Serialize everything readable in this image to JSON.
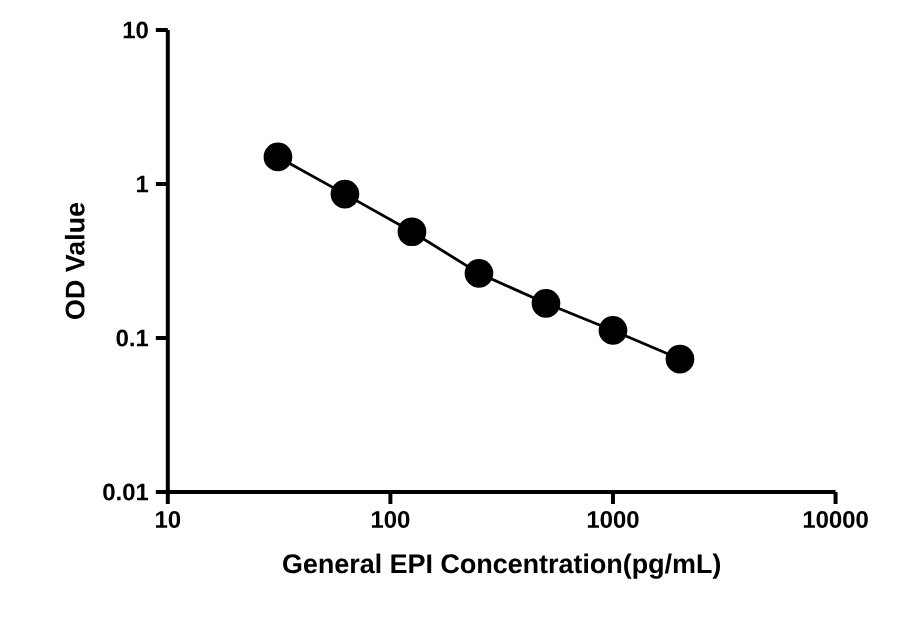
{
  "chart_data": {
    "type": "line",
    "xlabel": "General EPI Concentration(pg/mL)",
    "ylabel": "OD Value",
    "x": [
      31.25,
      62.5,
      125,
      250,
      500,
      1000,
      2000
    ],
    "series": [
      {
        "color": "#000000",
        "values": [
          1.5,
          0.86,
          0.49,
          0.263,
          0.168,
          0.112,
          0.073
        ]
      }
    ],
    "log": "xy",
    "xlim": [
      10,
      10000
    ],
    "ylim": [
      0.01,
      10
    ],
    "xticks": [
      10,
      100,
      1000,
      10000
    ],
    "yticks": [
      0.01,
      0.1,
      1,
      10
    ],
    "marker": "circle",
    "line_style": "solid"
  }
}
